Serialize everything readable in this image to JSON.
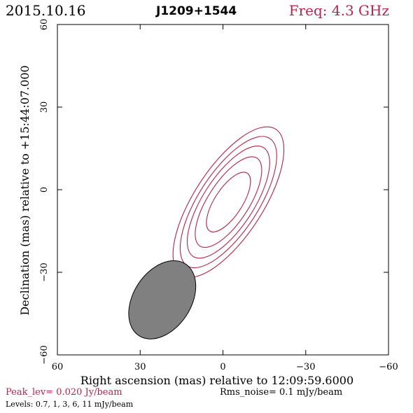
{
  "header": {
    "date": "2015.10.16",
    "source": "J1209+1544",
    "freq": "Freq: 4.3 GHz"
  },
  "footer": {
    "peak": "Peak_lev=  0.020 Jy/beam",
    "rms": "Rms_noise=   0.1 mJy/beam",
    "levels": "Levels: 0.7,   1,   3,   6,   11 mJy/beam"
  },
  "colors": {
    "contour": "#b2264a",
    "beam": "#808080",
    "accent": "#b2264a"
  },
  "chart_data": {
    "type": "contour",
    "xlabel": "Right ascension (mas) relative to 12:09:59.6000",
    "ylabel": "Declination (mas) relative to +15:44:07.000",
    "xlim": [
      60,
      -60
    ],
    "ylim": [
      -60,
      60
    ],
    "xticks": [
      60,
      30,
      0,
      -30,
      -60
    ],
    "yticks": [
      -60,
      -30,
      0,
      30,
      60
    ],
    "xtick_labels": [
      "60",
      "30",
      "0",
      "−30",
      "−60"
    ],
    "ytick_labels": [
      "−60",
      "−30",
      "0",
      "30",
      "60"
    ],
    "contour_levels_mJy": [
      0.7,
      1,
      3,
      6,
      11
    ],
    "contours": [
      {
        "level": 0.7,
        "center": [
          -2,
          -4.5
        ],
        "a": 31.5,
        "b": 12.5,
        "pa_deg": 57
      },
      {
        "level": 1,
        "center": [
          -2,
          -4.5
        ],
        "a": 27.5,
        "b": 10.8,
        "pa_deg": 57
      },
      {
        "level": 3,
        "center": [
          -2,
          -4.5
        ],
        "a": 23.5,
        "b": 9.2,
        "pa_deg": 57
      },
      {
        "level": 6,
        "center": [
          -2,
          -4.5
        ],
        "a": 19.0,
        "b": 7.4,
        "pa_deg": 57
      },
      {
        "level": 11,
        "center": [
          -2,
          -4.5
        ],
        "a": 12.5,
        "b": 5.0,
        "pa_deg": 57
      }
    ],
    "beam": {
      "center": [
        22,
        -40
      ],
      "major": 31,
      "minor": 11,
      "pa_deg": 57
    }
  }
}
